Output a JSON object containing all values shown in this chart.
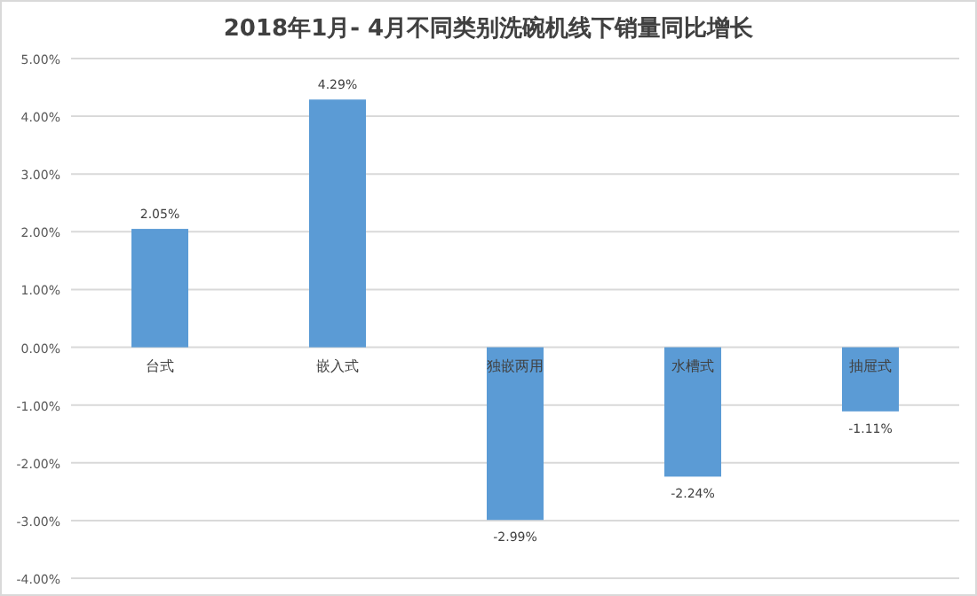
{
  "chart_data": {
    "type": "bar",
    "title": "2018年1月- 4月不同类别洗碗机线下销量同比增长",
    "categories": [
      "台式",
      "嵌入式",
      "独嵌两用",
      "水槽式",
      "抽屉式"
    ],
    "values": [
      2.05,
      4.29,
      -2.99,
      -2.24,
      -1.11
    ],
    "value_labels": [
      "2.05%",
      "4.29%",
      "-2.99%",
      "-2.24%",
      "-1.11%"
    ],
    "color": "#5b9bd5",
    "ylim": [
      -4,
      5
    ],
    "yticks": [
      {
        "value": 5,
        "label": "5.00%"
      },
      {
        "value": 4,
        "label": "4.00%"
      },
      {
        "value": 3,
        "label": "3.00%"
      },
      {
        "value": 2,
        "label": "2.00%"
      },
      {
        "value": 1,
        "label": "1.00%"
      },
      {
        "value": 0,
        "label": "0.00%"
      },
      {
        "value": -1,
        "label": "-1.00%"
      },
      {
        "value": -2,
        "label": "-2.00%"
      },
      {
        "value": -3,
        "label": "-3.00%"
      },
      {
        "value": -4,
        "label": "-4.00%"
      }
    ],
    "grid": "y"
  }
}
